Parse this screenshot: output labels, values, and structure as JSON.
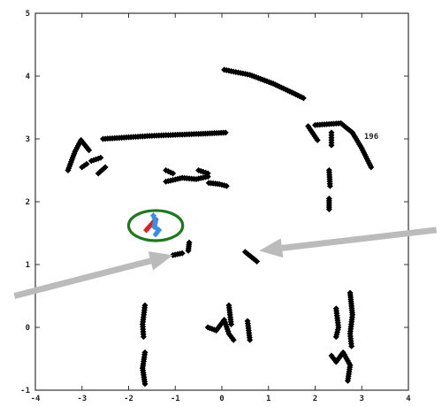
{
  "chart_data": {
    "type": "scatter",
    "title": "",
    "xlabel": "",
    "ylabel": "",
    "xlim": [
      -4,
      4
    ],
    "ylim": [
      -1,
      5
    ],
    "grid": false,
    "xticks": [
      -4,
      -3,
      -2,
      -1,
      0,
      1,
      2,
      3,
      4
    ],
    "yticks": [
      -1,
      0,
      1,
      2,
      3,
      4,
      5
    ],
    "xtick_labels": [
      "-4",
      "-3",
      "-2",
      "-1",
      "0",
      "1",
      "2",
      "3",
      "4"
    ],
    "ytick_labels": [
      "-1",
      "0",
      "1",
      "2",
      "3",
      "4",
      "5"
    ],
    "annotation": "196",
    "series": [
      {
        "color": "#000000",
        "paths": [
          [
            [
              0.05,
              4.1
            ],
            [
              0.6,
              4.02
            ],
            [
              1.1,
              3.88
            ],
            [
              1.5,
              3.74
            ],
            [
              1.75,
              3.65
            ]
          ],
          [
            [
              -2.55,
              3.0
            ],
            [
              -1.5,
              3.05
            ],
            [
              -0.5,
              3.08
            ],
            [
              0.08,
              3.1
            ]
          ],
          [
            [
              -3.3,
              2.5
            ],
            [
              -3.15,
              2.8
            ],
            [
              -3.02,
              2.98
            ],
            [
              -2.85,
              2.82
            ]
          ],
          [
            [
              -3.0,
              2.55
            ],
            [
              -2.9,
              2.6
            ]
          ],
          [
            [
              -2.8,
              2.65
            ],
            [
              -2.6,
              2.7
            ]
          ],
          [
            [
              -2.65,
              2.45
            ],
            [
              -2.5,
              2.55
            ]
          ],
          [
            [
              -1.2,
              2.32
            ],
            [
              -0.85,
              2.38
            ],
            [
              -0.55,
              2.36
            ],
            [
              -0.3,
              2.4
            ]
          ],
          [
            [
              -0.28,
              2.3
            ],
            [
              -0.05,
              2.28
            ],
            [
              0.1,
              2.25
            ]
          ],
          [
            [
              -1.2,
              2.5
            ],
            [
              -1.05,
              2.45
            ]
          ],
          [
            [
              -0.5,
              2.5
            ],
            [
              -0.3,
              2.45
            ]
          ],
          [
            [
              2.0,
              3.22
            ],
            [
              2.55,
              3.25
            ],
            [
              2.8,
              3.1
            ],
            [
              3.0,
              2.85
            ],
            [
              3.2,
              2.55
            ]
          ],
          [
            [
              1.85,
              3.2
            ],
            [
              2.05,
              2.98
            ]
          ],
          [
            [
              2.35,
              3.1
            ],
            [
              2.35,
              2.9
            ]
          ],
          [
            [
              2.3,
              2.5
            ],
            [
              2.32,
              2.25
            ]
          ],
          [
            [
              2.3,
              2.05
            ],
            [
              2.3,
              1.88
            ]
          ],
          [
            [
              -1.05,
              1.15
            ],
            [
              -0.85,
              1.18
            ]
          ],
          [
            [
              -0.7,
              1.35
            ],
            [
              -0.72,
              1.22
            ]
          ],
          [
            [
              0.5,
              1.2
            ],
            [
              0.75,
              1.05
            ]
          ],
          [
            [
              -1.65,
              0.35
            ],
            [
              -1.7,
              0.05
            ],
            [
              -1.68,
              -0.15
            ]
          ],
          [
            [
              -1.65,
              -0.4
            ],
            [
              -1.7,
              -0.65
            ],
            [
              -1.65,
              -0.9
            ]
          ],
          [
            [
              -0.3,
              0.0
            ],
            [
              -0.12,
              -0.05
            ],
            [
              0.05,
              0.12
            ],
            [
              0.15,
              -0.1
            ],
            [
              0.25,
              -0.2
            ]
          ],
          [
            [
              0.15,
              0.35
            ],
            [
              0.2,
              0.05
            ]
          ],
          [
            [
              0.55,
              0.1
            ],
            [
              0.6,
              -0.2
            ]
          ],
          [
            [
              2.75,
              0.55
            ],
            [
              2.8,
              0.2
            ],
            [
              2.75,
              -0.1
            ],
            [
              2.78,
              -0.3
            ]
          ],
          [
            [
              2.45,
              0.3
            ],
            [
              2.5,
              0.0
            ],
            [
              2.45,
              -0.15
            ]
          ],
          [
            [
              2.35,
              -0.45
            ],
            [
              2.45,
              -0.55
            ],
            [
              2.6,
              -0.4
            ],
            [
              2.75,
              -0.6
            ],
            [
              2.7,
              -0.85
            ]
          ]
        ]
      },
      {
        "color": "#e02020",
        "paths": [
          [
            [
              -1.62,
              1.55
            ],
            [
              -1.5,
              1.65
            ],
            [
              -1.42,
              1.72
            ]
          ]
        ]
      },
      {
        "color": "#3a8ee8",
        "paths": [
          [
            [
              -1.47,
              1.78
            ],
            [
              -1.42,
              1.7
            ],
            [
              -1.45,
              1.6
            ],
            [
              -1.35,
              1.55
            ],
            [
              -1.42,
              1.48
            ]
          ]
        ]
      }
    ],
    "highlight": {
      "shape": "ellipse",
      "color": "#1a7a1a",
      "center": [
        -1.42,
        1.62
      ],
      "rx": 0.58,
      "ry": 0.24
    },
    "arrows": [
      {
        "color": "#bbbbbb",
        "from": [
          -4.45,
          0.5
        ],
        "to": [
          -1.05,
          1.15
        ]
      },
      {
        "color": "#bbbbbb",
        "from": [
          4.6,
          1.55
        ],
        "to": [
          0.8,
          1.22
        ]
      }
    ]
  }
}
